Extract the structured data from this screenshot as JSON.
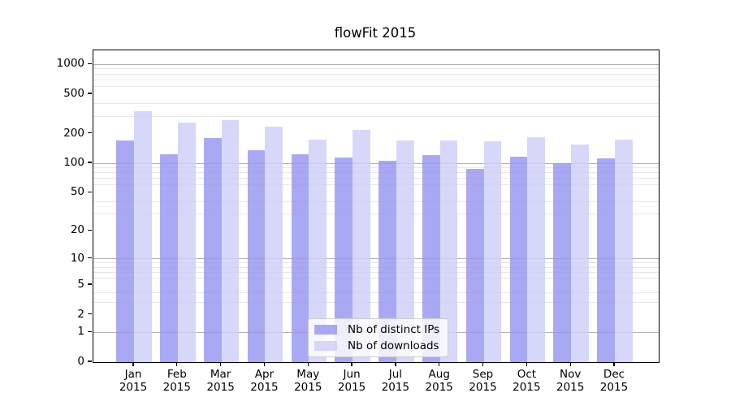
{
  "chart_data": {
    "type": "bar",
    "title": "flowFit 2015",
    "xlabel": "",
    "ylabel": "",
    "year_label": "2015",
    "categories": [
      "Jan",
      "Feb",
      "Mar",
      "Apr",
      "May",
      "Jun",
      "Jul",
      "Aug",
      "Sep",
      "Oct",
      "Nov",
      "Dec"
    ],
    "series": [
      {
        "name": "Nb of distinct IPs",
        "color_key": "ips",
        "values": [
          170,
          123,
          179,
          137,
          123,
          114,
          106,
          120,
          88,
          116,
          100,
          113
        ]
      },
      {
        "name": "Nb of downloads",
        "color_key": "downloads",
        "values": [
          336,
          258,
          275,
          233,
          174,
          218,
          171,
          171,
          166,
          184,
          155,
          174
        ]
      }
    ],
    "yscale": "log1p",
    "ylim": [
      0,
      1387
    ],
    "yticks": [
      0,
      1,
      2,
      5,
      10,
      20,
      50,
      100,
      200,
      500,
      1000
    ],
    "ytick_labels": [
      "0",
      "1",
      "2",
      "5",
      "10",
      "20",
      "50",
      "100",
      "200",
      "500",
      "1000"
    ],
    "major_gridlines": [
      1,
      10,
      100,
      1000
    ],
    "minor_gridlines": [
      3,
      4,
      6,
      7,
      8,
      9,
      30,
      40,
      60,
      70,
      80,
      90,
      300,
      400,
      600,
      700,
      800,
      900
    ],
    "grid": true,
    "legend": {
      "position": "lower center"
    },
    "colors": {
      "ips": "#9494f0",
      "downloads": "#cdcdf7",
      "bar_alpha": 0.8,
      "major_grid": "#b3b3b3",
      "minor_grid": "#e7e7e7",
      "spine": "#000000",
      "background": "#ffffff"
    }
  }
}
